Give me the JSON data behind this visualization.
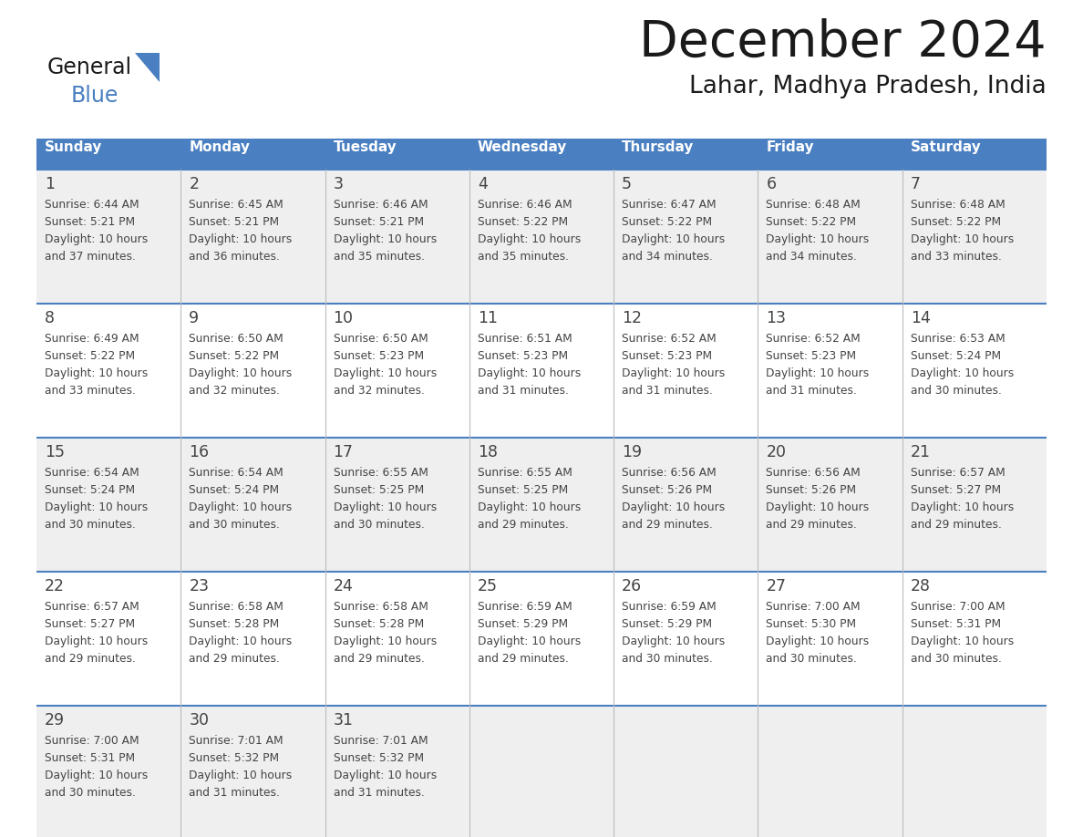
{
  "title": "December 2024",
  "subtitle": "Lahar, Madhya Pradesh, India",
  "header_color": "#4a7fc1",
  "header_text_color": "#FFFFFF",
  "cell_bg_white": "#FFFFFF",
  "cell_bg_gray": "#EFEFEF",
  "day_names": [
    "Sunday",
    "Monday",
    "Tuesday",
    "Wednesday",
    "Thursday",
    "Friday",
    "Saturday"
  ],
  "grid_line_color": "#4a7fc1",
  "text_color": "#444444",
  "days": [
    {
      "day": 1,
      "col": 0,
      "row": 0,
      "sunrise": "6:44 AM",
      "sunset": "5:21 PM",
      "daylight_hours": 10,
      "daylight_minutes": 37
    },
    {
      "day": 2,
      "col": 1,
      "row": 0,
      "sunrise": "6:45 AM",
      "sunset": "5:21 PM",
      "daylight_hours": 10,
      "daylight_minutes": 36
    },
    {
      "day": 3,
      "col": 2,
      "row": 0,
      "sunrise": "6:46 AM",
      "sunset": "5:21 PM",
      "daylight_hours": 10,
      "daylight_minutes": 35
    },
    {
      "day": 4,
      "col": 3,
      "row": 0,
      "sunrise": "6:46 AM",
      "sunset": "5:22 PM",
      "daylight_hours": 10,
      "daylight_minutes": 35
    },
    {
      "day": 5,
      "col": 4,
      "row": 0,
      "sunrise": "6:47 AM",
      "sunset": "5:22 PM",
      "daylight_hours": 10,
      "daylight_minutes": 34
    },
    {
      "day": 6,
      "col": 5,
      "row": 0,
      "sunrise": "6:48 AM",
      "sunset": "5:22 PM",
      "daylight_hours": 10,
      "daylight_minutes": 34
    },
    {
      "day": 7,
      "col": 6,
      "row": 0,
      "sunrise": "6:48 AM",
      "sunset": "5:22 PM",
      "daylight_hours": 10,
      "daylight_minutes": 33
    },
    {
      "day": 8,
      "col": 0,
      "row": 1,
      "sunrise": "6:49 AM",
      "sunset": "5:22 PM",
      "daylight_hours": 10,
      "daylight_minutes": 33
    },
    {
      "day": 9,
      "col": 1,
      "row": 1,
      "sunrise": "6:50 AM",
      "sunset": "5:22 PM",
      "daylight_hours": 10,
      "daylight_minutes": 32
    },
    {
      "day": 10,
      "col": 2,
      "row": 1,
      "sunrise": "6:50 AM",
      "sunset": "5:23 PM",
      "daylight_hours": 10,
      "daylight_minutes": 32
    },
    {
      "day": 11,
      "col": 3,
      "row": 1,
      "sunrise": "6:51 AM",
      "sunset": "5:23 PM",
      "daylight_hours": 10,
      "daylight_minutes": 31
    },
    {
      "day": 12,
      "col": 4,
      "row": 1,
      "sunrise": "6:52 AM",
      "sunset": "5:23 PM",
      "daylight_hours": 10,
      "daylight_minutes": 31
    },
    {
      "day": 13,
      "col": 5,
      "row": 1,
      "sunrise": "6:52 AM",
      "sunset": "5:23 PM",
      "daylight_hours": 10,
      "daylight_minutes": 31
    },
    {
      "day": 14,
      "col": 6,
      "row": 1,
      "sunrise": "6:53 AM",
      "sunset": "5:24 PM",
      "daylight_hours": 10,
      "daylight_minutes": 30
    },
    {
      "day": 15,
      "col": 0,
      "row": 2,
      "sunrise": "6:54 AM",
      "sunset": "5:24 PM",
      "daylight_hours": 10,
      "daylight_minutes": 30
    },
    {
      "day": 16,
      "col": 1,
      "row": 2,
      "sunrise": "6:54 AM",
      "sunset": "5:24 PM",
      "daylight_hours": 10,
      "daylight_minutes": 30
    },
    {
      "day": 17,
      "col": 2,
      "row": 2,
      "sunrise": "6:55 AM",
      "sunset": "5:25 PM",
      "daylight_hours": 10,
      "daylight_minutes": 30
    },
    {
      "day": 18,
      "col": 3,
      "row": 2,
      "sunrise": "6:55 AM",
      "sunset": "5:25 PM",
      "daylight_hours": 10,
      "daylight_minutes": 29
    },
    {
      "day": 19,
      "col": 4,
      "row": 2,
      "sunrise": "6:56 AM",
      "sunset": "5:26 PM",
      "daylight_hours": 10,
      "daylight_minutes": 29
    },
    {
      "day": 20,
      "col": 5,
      "row": 2,
      "sunrise": "6:56 AM",
      "sunset": "5:26 PM",
      "daylight_hours": 10,
      "daylight_minutes": 29
    },
    {
      "day": 21,
      "col": 6,
      "row": 2,
      "sunrise": "6:57 AM",
      "sunset": "5:27 PM",
      "daylight_hours": 10,
      "daylight_minutes": 29
    },
    {
      "day": 22,
      "col": 0,
      "row": 3,
      "sunrise": "6:57 AM",
      "sunset": "5:27 PM",
      "daylight_hours": 10,
      "daylight_minutes": 29
    },
    {
      "day": 23,
      "col": 1,
      "row": 3,
      "sunrise": "6:58 AM",
      "sunset": "5:28 PM",
      "daylight_hours": 10,
      "daylight_minutes": 29
    },
    {
      "day": 24,
      "col": 2,
      "row": 3,
      "sunrise": "6:58 AM",
      "sunset": "5:28 PM",
      "daylight_hours": 10,
      "daylight_minutes": 29
    },
    {
      "day": 25,
      "col": 3,
      "row": 3,
      "sunrise": "6:59 AM",
      "sunset": "5:29 PM",
      "daylight_hours": 10,
      "daylight_minutes": 29
    },
    {
      "day": 26,
      "col": 4,
      "row": 3,
      "sunrise": "6:59 AM",
      "sunset": "5:29 PM",
      "daylight_hours": 10,
      "daylight_minutes": 30
    },
    {
      "day": 27,
      "col": 5,
      "row": 3,
      "sunrise": "7:00 AM",
      "sunset": "5:30 PM",
      "daylight_hours": 10,
      "daylight_minutes": 30
    },
    {
      "day": 28,
      "col": 6,
      "row": 3,
      "sunrise": "7:00 AM",
      "sunset": "5:31 PM",
      "daylight_hours": 10,
      "daylight_minutes": 30
    },
    {
      "day": 29,
      "col": 0,
      "row": 4,
      "sunrise": "7:00 AM",
      "sunset": "5:31 PM",
      "daylight_hours": 10,
      "daylight_minutes": 30
    },
    {
      "day": 30,
      "col": 1,
      "row": 4,
      "sunrise": "7:01 AM",
      "sunset": "5:32 PM",
      "daylight_hours": 10,
      "daylight_minutes": 31
    },
    {
      "day": 31,
      "col": 2,
      "row": 4,
      "sunrise": "7:01 AM",
      "sunset": "5:32 PM",
      "daylight_hours": 10,
      "daylight_minutes": 31
    }
  ]
}
